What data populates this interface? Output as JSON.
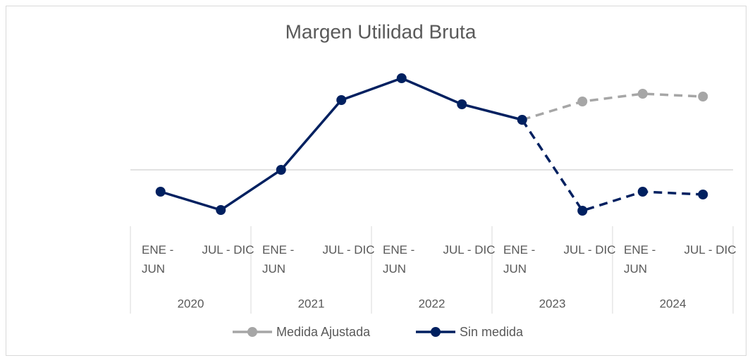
{
  "chart_data": {
    "type": "line",
    "title": "Margen Utilidad Bruta",
    "categories": [
      "ENE - JUN",
      "JUL - DIC",
      "ENE - JUN",
      "JUL - DIC",
      "ENE - JUN",
      "JUL - DIC",
      "ENE - JUN",
      "JUL - DIC",
      "ENE - JUN",
      "JUL - DIC"
    ],
    "groups": [
      "2020",
      "2021",
      "2022",
      "2023",
      "2024"
    ],
    "series": [
      {
        "name": "Medida Ajustada",
        "color": "#a6a6a6",
        "dashed": true,
        "values": [
          null,
          null,
          null,
          null,
          null,
          null,
          7.1,
          9.7,
          10.8,
          10.4
        ]
      },
      {
        "name": "Sin medida",
        "color": "#002060",
        "dashed_after": 6,
        "values": [
          -3.1,
          -5.7,
          0,
          9.9,
          13,
          9.3,
          7.1,
          -5.8,
          -3.1,
          -3.5
        ]
      }
    ],
    "ylim": [
      -8,
      15
    ]
  }
}
